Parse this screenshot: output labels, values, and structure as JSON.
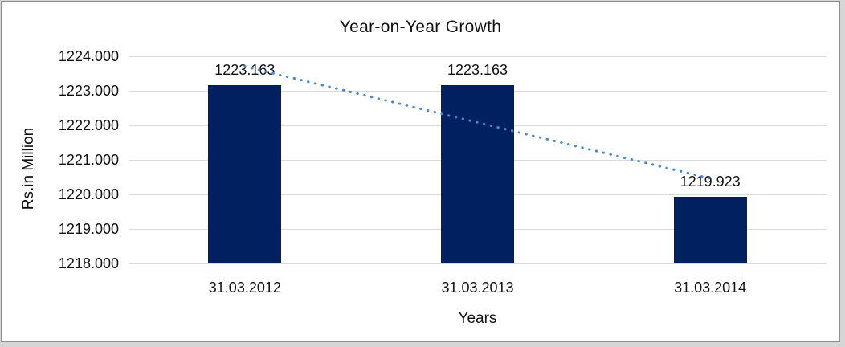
{
  "window": {
    "background_color": "#d6d6d6",
    "panel_background": "#ffffff",
    "panel_border_color": "#8c8c8c"
  },
  "chart_data": {
    "type": "bar",
    "title": "Year-on-Year Growth",
    "xlabel": "Years",
    "ylabel": "Rs.in Million",
    "categories": [
      "31.03.2012",
      "31.03.2013",
      "31.03.2014"
    ],
    "values": [
      1223.163,
      1223.163,
      1219.923
    ],
    "data_labels": [
      "1223.163",
      "1223.163",
      "1219.923"
    ],
    "ylim": [
      1218,
      1224
    ],
    "yticks": [
      "1224.000",
      "1223.000",
      "1222.000",
      "1221.000",
      "1220.000",
      "1219.000",
      "1218.000"
    ],
    "grid": true,
    "legend": "none",
    "bar_color": "#002060",
    "gridline_color": "#d9d9d9",
    "text_color": "#111111",
    "trendline": {
      "type": "linear",
      "style": "dotted",
      "color": "#4a86c8",
      "start_value": 1223.703,
      "end_value": 1220.463
    }
  }
}
